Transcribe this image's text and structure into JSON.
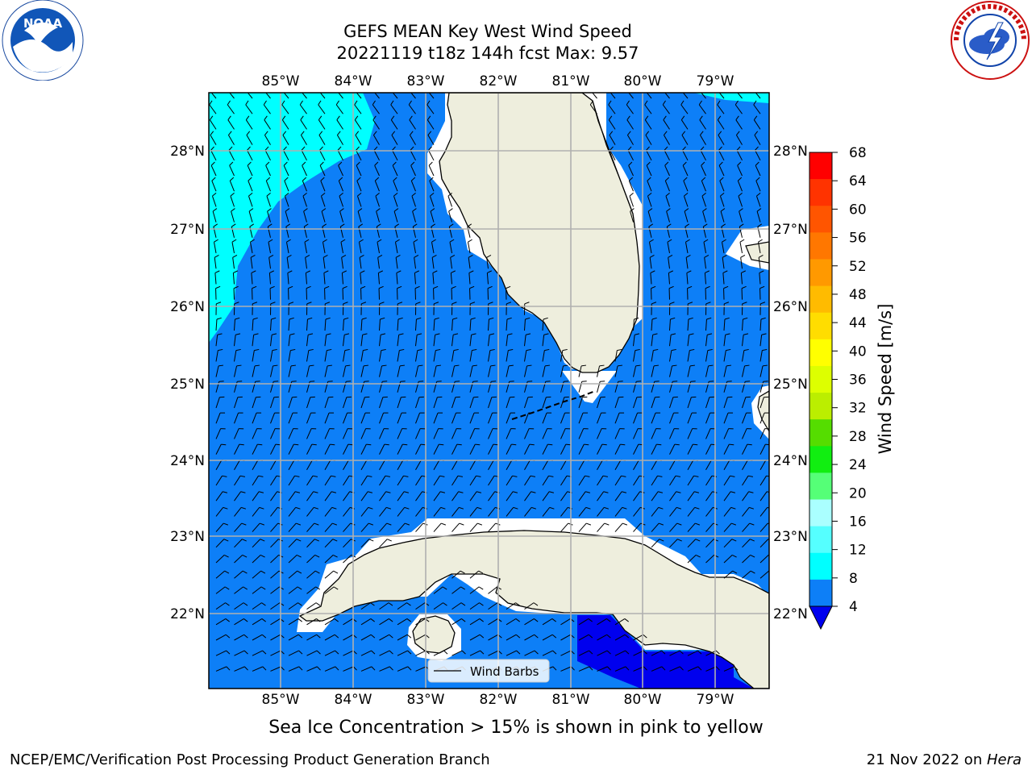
{
  "title": {
    "line1": "GEFS MEAN Key West Wind Speed",
    "line2": "20221119 t18z 144h fcst   Max: 9.57"
  },
  "logos": {
    "left": "noaa-logo",
    "right": "nws-logo"
  },
  "map": {
    "lon_labels": [
      "85°W",
      "84°W",
      "83°W",
      "82°W",
      "81°W",
      "80°W",
      "79°W"
    ],
    "lat_labels": [
      "28°N",
      "27°N",
      "26°N",
      "25°N",
      "24°N",
      "23°N",
      "22°N"
    ],
    "legend_label": "Wind Barbs",
    "colors": {
      "ocean_blue": "#0d7ff7",
      "cyan_zone": "#00ffff",
      "dark_blue": "#0000ee",
      "land": "#eeeedd",
      "grid": "#b0b0b0"
    }
  },
  "colorbar": {
    "label": "Wind Speed [m/s]",
    "ticks": [
      "68",
      "64",
      "60",
      "56",
      "52",
      "48",
      "44",
      "40",
      "36",
      "32",
      "28",
      "24",
      "20",
      "16",
      "12",
      "8",
      "4"
    ],
    "colors": [
      "#ff0000",
      "#ff3300",
      "#ff5500",
      "#ff7700",
      "#ff9900",
      "#ffbb00",
      "#ffdd00",
      "#ffff00",
      "#ddff00",
      "#bbee00",
      "#55dd00",
      "#11ee11",
      "#55ff77",
      "#aaffff",
      "#55ffff",
      "#00ffff",
      "#0d7ff7"
    ],
    "min_color": "#0000ee"
  },
  "caption": "Sea Ice Concentration > 15% is shown in pink to yellow",
  "footer": {
    "left": "NCEP/EMC/Verification Post Processing Product Generation Branch",
    "date": "21 Nov 2022 on ",
    "machine": "Hera"
  }
}
